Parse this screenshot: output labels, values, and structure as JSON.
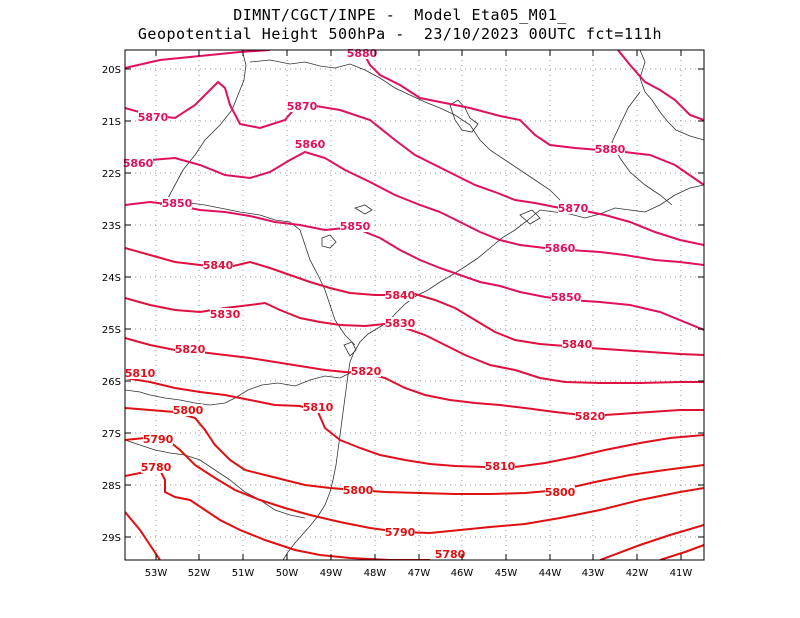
{
  "header": {
    "line1": "DIMNT/CGCT/INPE -  Model Eta05_M01_",
    "line2": "Geopotential Height 500hPa -  23/10/2023 00UTC fct=111h"
  },
  "lat_labels": [
    "20S",
    "21S",
    "22S",
    "23S",
    "24S",
    "25S",
    "26S",
    "27S",
    "28S",
    "29S"
  ],
  "lon_labels": [
    "53W",
    "52W",
    "51W",
    "50W",
    "49W",
    "48W",
    "47W",
    "46W",
    "45W",
    "44W",
    "43W",
    "42W",
    "41W"
  ],
  "contours": [
    {
      "value": 5880,
      "color": "#e01060"
    },
    {
      "value": 5870,
      "color": "#e01060"
    },
    {
      "value": 5860,
      "color": "#e01060"
    },
    {
      "value": 5850,
      "color": "#e01060"
    },
    {
      "value": 5840,
      "color": "#e01040"
    },
    {
      "value": 5830,
      "color": "#e01040"
    },
    {
      "value": 5820,
      "color": "#e01030"
    },
    {
      "value": 5810,
      "color": "#e01020"
    },
    {
      "value": 5800,
      "color": "#e01010"
    },
    {
      "value": 5790,
      "color": "#e01010"
    },
    {
      "value": 5780,
      "color": "#e01010"
    }
  ],
  "contour_labels": [
    {
      "text": "5880",
      "color": "#e01060"
    },
    {
      "text": "5880",
      "color": "#e01060"
    },
    {
      "text": "5870",
      "color": "#e01060"
    },
    {
      "text": "5870",
      "color": "#e01060"
    },
    {
      "text": "5870",
      "color": "#e01060"
    },
    {
      "text": "5860",
      "color": "#e01060"
    },
    {
      "text": "5860",
      "color": "#e01060"
    },
    {
      "text": "5860",
      "color": "#e01060"
    },
    {
      "text": "5850",
      "color": "#e01060"
    },
    {
      "text": "5850",
      "color": "#e01060"
    },
    {
      "text": "5850",
      "color": "#e01060"
    },
    {
      "text": "5840",
      "color": "#e01040"
    },
    {
      "text": "5840",
      "color": "#e01040"
    },
    {
      "text": "5840",
      "color": "#e01040"
    },
    {
      "text": "5830",
      "color": "#e01040"
    },
    {
      "text": "5830",
      "color": "#e01040"
    },
    {
      "text": "5820",
      "color": "#e01030"
    },
    {
      "text": "5820",
      "color": "#e01030"
    },
    {
      "text": "5820",
      "color": "#e01030"
    },
    {
      "text": "5810",
      "color": "#e01020"
    },
    {
      "text": "5810",
      "color": "#e01020"
    },
    {
      "text": "5810",
      "color": "#e01020"
    },
    {
      "text": "5800",
      "color": "#e01010"
    },
    {
      "text": "5800",
      "color": "#e01010"
    },
    {
      "text": "5800",
      "color": "#e01010"
    },
    {
      "text": "5790",
      "color": "#e01010"
    },
    {
      "text": "5790",
      "color": "#e01010"
    },
    {
      "text": "5780",
      "color": "#e01010"
    },
    {
      "text": "5780",
      "color": "#e01010"
    }
  ]
}
